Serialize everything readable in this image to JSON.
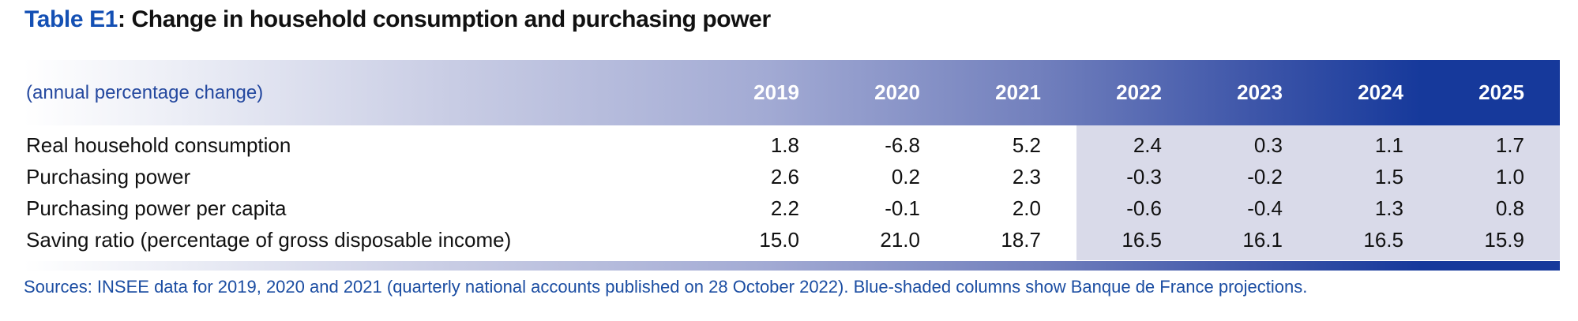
{
  "title": {
    "prefix": "Table E1",
    "separator": ": ",
    "rest": "Change in household consumption and purchasing power"
  },
  "table": {
    "unit_label": "(annual percentage change)",
    "years": [
      "2019",
      "2020",
      "2021",
      "2022",
      "2023",
      "2024",
      "2025"
    ],
    "rows": [
      {
        "label": "Real household consumption",
        "values": [
          "1.8",
          "-6.8",
          "5.2",
          "2.4",
          "0.3",
          "1.1",
          "1.7"
        ]
      },
      {
        "label": "Purchasing power",
        "values": [
          "2.6",
          "0.2",
          "2.3",
          "-0.3",
          "-0.2",
          "1.5",
          "1.0"
        ]
      },
      {
        "label": "Purchasing power per capita",
        "values": [
          "2.2",
          "-0.1",
          "2.0",
          "-0.6",
          "-0.4",
          "1.3",
          "0.8"
        ]
      },
      {
        "label": "Saving ratio (percentage of gross disposable income)",
        "values": [
          "15.0",
          "21.0",
          "18.7",
          "16.5",
          "16.1",
          "16.5",
          "15.9"
        ]
      }
    ]
  },
  "footer": {
    "sources": "Sources: INSEE data for 2019, 2020 and 2021 (quarterly national accounts published on 28 October 2022). Blue-shaded columns show Banque de France projections."
  },
  "colors": {
    "title_accent": "#1450b4",
    "header_dark": "#16399b",
    "unit_label_blue": "#24489f",
    "projection_shading": "#d9dae9",
    "note_text": "#1b4da2"
  },
  "chart_data": {
    "type": "table",
    "title": "Table E1: Change in household consumption and purchasing power",
    "unit": "annual percentage change",
    "categories": [
      "2019",
      "2020",
      "2021",
      "2022",
      "2023",
      "2024",
      "2025"
    ],
    "series": [
      {
        "name": "Real household consumption",
        "values": [
          1.8,
          -6.8,
          5.2,
          2.4,
          0.3,
          1.1,
          1.7
        ]
      },
      {
        "name": "Purchasing power",
        "values": [
          2.6,
          0.2,
          2.3,
          -0.3,
          -0.2,
          1.5,
          1.0
        ]
      },
      {
        "name": "Purchasing power per capita",
        "values": [
          2.2,
          -0.1,
          2.0,
          -0.6,
          -0.4,
          1.3,
          0.8
        ]
      },
      {
        "name": "Saving ratio (percentage of gross disposable income)",
        "values": [
          15.0,
          21.0,
          18.7,
          16.5,
          16.1,
          16.5,
          15.9
        ]
      },
      {
        "name": "Sources",
        "values": [
          "INSEE data for 2019, 2020 and 2021 (quarterly national accounts published on 28 October 2022)"
        ]
      }
    ],
    "projection_columns": [
      "2022",
      "2023",
      "2024",
      "2025"
    ],
    "note": "Blue-shaded columns show Banque de France projections."
  }
}
